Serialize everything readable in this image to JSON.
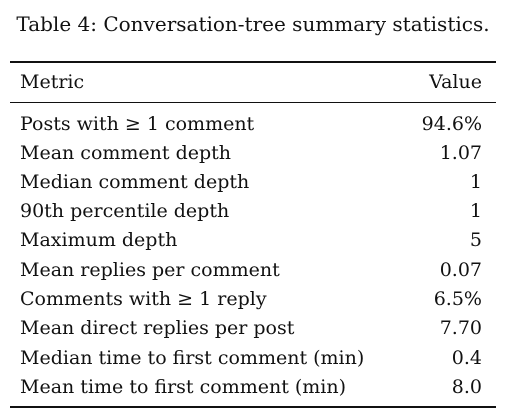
{
  "caption": "Table 4: Conversation-tree summary statistics.",
  "table": {
    "headers": {
      "metric": "Metric",
      "value": "Value"
    },
    "rows": [
      {
        "metric": "Posts with ≥ 1 comment",
        "value": "94.6%"
      },
      {
        "metric": "Mean comment depth",
        "value": "1.07"
      },
      {
        "metric": "Median comment depth",
        "value": "1"
      },
      {
        "metric": "90th percentile depth",
        "value": "1"
      },
      {
        "metric": "Maximum depth",
        "value": "5"
      },
      {
        "metric": "Mean replies per comment",
        "value": "0.07"
      },
      {
        "metric": "Comments with ≥ 1 reply",
        "value": "6.5%"
      },
      {
        "metric": "Mean direct replies per post",
        "value": "7.70"
      },
      {
        "metric": "Median time to first comment (min)",
        "value": "0.4"
      },
      {
        "metric": "Mean time to first comment (min)",
        "value": "8.0"
      }
    ]
  }
}
